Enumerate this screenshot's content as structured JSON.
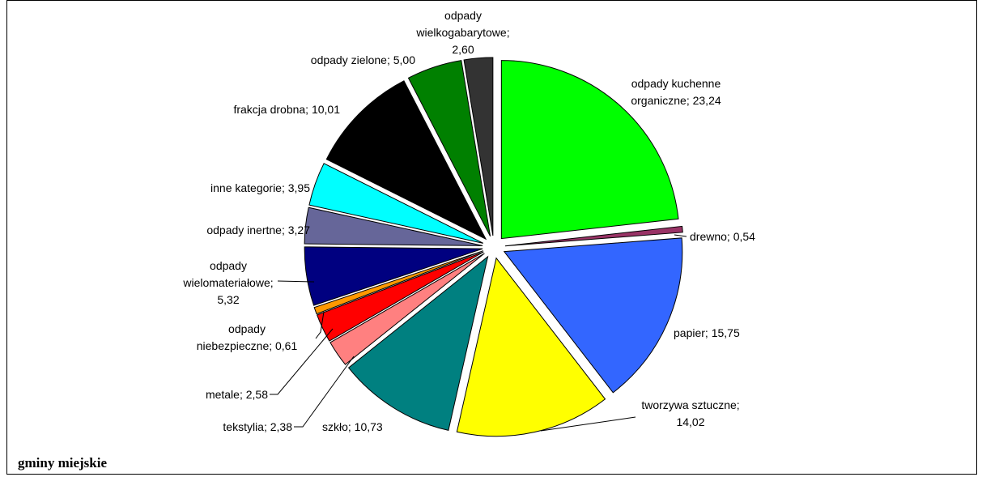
{
  "footer": {
    "caption": "gminy miejskie"
  },
  "chart_data": {
    "type": "pie",
    "title": "",
    "slices": [
      {
        "label": "odpady kuchenne organiczne",
        "value": 23.24,
        "value_text": "23,24",
        "color": "#00ff00",
        "label_lines": [
          "odpady kuchenne",
          "organiczne; 23,24"
        ]
      },
      {
        "label": "drewno",
        "value": 0.54,
        "value_text": "0,54",
        "color": "#993366",
        "label_lines": [
          "drewno; 0,54"
        ]
      },
      {
        "label": "papier",
        "value": 15.75,
        "value_text": "15,75",
        "color": "#3366ff",
        "label_lines": [
          "papier; 15,75"
        ]
      },
      {
        "label": "tworzywa sztuczne",
        "value": 14.02,
        "value_text": "14,02",
        "color": "#ffff00",
        "label_lines": [
          "tworzywa sztuczne;",
          "14,02"
        ]
      },
      {
        "label": "szkło",
        "value": 10.73,
        "value_text": "10,73",
        "color": "#008080",
        "label_lines": [
          "szkło; 10,73"
        ]
      },
      {
        "label": "tekstylia",
        "value": 2.38,
        "value_text": "2,38",
        "color": "#ff8080",
        "label_lines": [
          "tekstylia; 2,38"
        ]
      },
      {
        "label": "metale",
        "value": 2.58,
        "value_text": "2,58",
        "color": "#ff0000",
        "label_lines": [
          "metale; 2,58"
        ]
      },
      {
        "label": "odpady niebezpieczne",
        "value": 0.61,
        "value_text": "0,61",
        "color": "#ff9900",
        "label_lines": [
          "odpady",
          "niebezpieczne; 0,61"
        ]
      },
      {
        "label": "odpady wielomateriałowe",
        "value": 5.32,
        "value_text": "5,32",
        "color": "#000080",
        "label_lines": [
          "odpady",
          "wielomateriałowe;",
          "5,32"
        ]
      },
      {
        "label": "odpady inertne",
        "value": 3.27,
        "value_text": "3,27",
        "color": "#666699",
        "label_lines": [
          "odpady inertne; 3,27"
        ]
      },
      {
        "label": "inne kategorie",
        "value": 3.95,
        "value_text": "3,95",
        "color": "#00ffff",
        "label_lines": [
          "inne kategorie; 3,95"
        ]
      },
      {
        "label": "frakcja drobna",
        "value": 10.01,
        "value_text": "10,01",
        "color": "#000000",
        "label_lines": [
          "frakcja drobna; 10,01"
        ]
      },
      {
        "label": "odpady zielone",
        "value": 5.0,
        "value_text": "5,00",
        "color": "#008000",
        "label_lines": [
          "odpady zielone; 5,00"
        ]
      },
      {
        "label": "odpady wielkogabarytowe",
        "value": 2.6,
        "value_text": "2,60",
        "color": "#333333",
        "label_lines": [
          "odpady",
          "wielkogabarytowe;",
          "2,60"
        ]
      }
    ]
  }
}
